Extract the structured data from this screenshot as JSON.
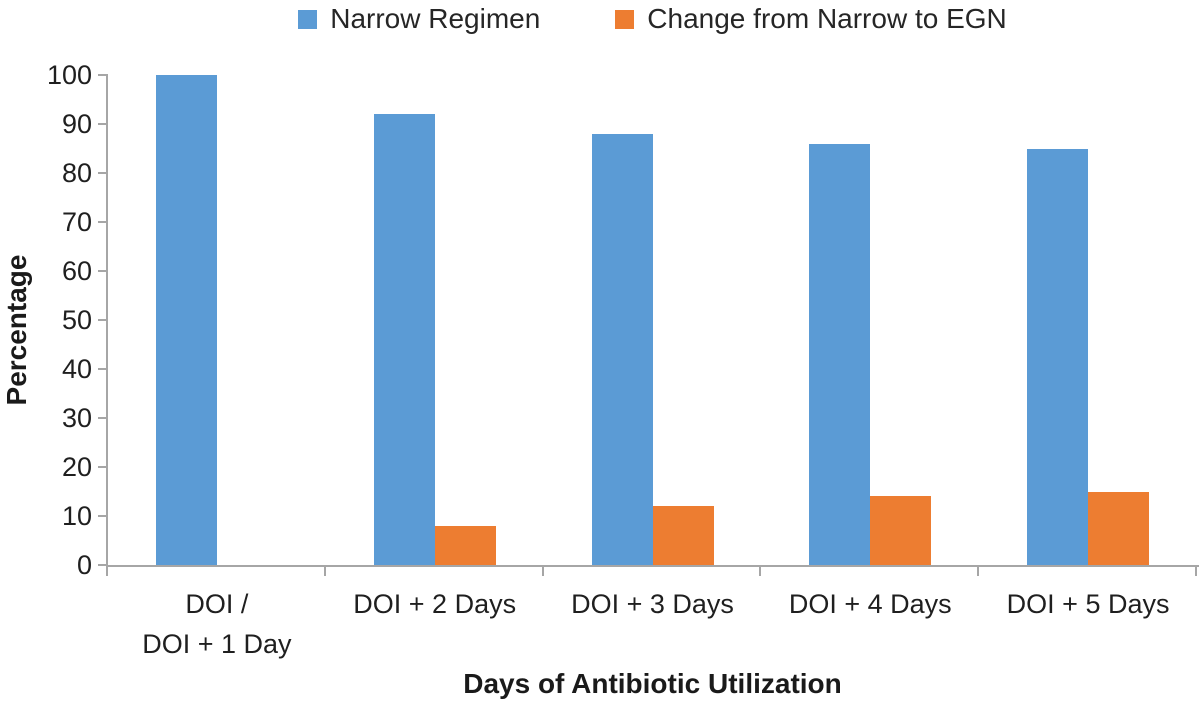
{
  "legend": {
    "items": [
      {
        "label": "Narrow Regimen",
        "color": "#5B9BD5"
      },
      {
        "label": "Change from Narrow to EGN",
        "color": "#ED7D31"
      }
    ]
  },
  "chart_data": {
    "type": "bar",
    "title": "",
    "xlabel": "Days of Antibiotic Utilization",
    "ylabel": "Percentage",
    "ylim": [
      0,
      100
    ],
    "ytick_step": 10,
    "yticks": [
      0,
      10,
      20,
      30,
      40,
      50,
      60,
      70,
      80,
      90,
      100
    ],
    "grid": false,
    "legend_position": "top-center",
    "categories": [
      "DOI / DOI + 1 Day",
      "DOI + 2 Days",
      "DOI + 3 Days",
      "DOI + 4 Days",
      "DOI + 5 Days"
    ],
    "category_label_lines": [
      [
        "DOI /",
        "DOI + 1 Day"
      ],
      [
        "DOI + 2 Days"
      ],
      [
        "DOI + 3 Days"
      ],
      [
        "DOI + 4 Days"
      ],
      [
        "DOI + 5 Days"
      ]
    ],
    "series": [
      {
        "name": "Narrow Regimen",
        "color": "#5B9BD5",
        "values": [
          100,
          92,
          88,
          86,
          85
        ]
      },
      {
        "name": "Change from Narrow to EGN",
        "color": "#ED7D31",
        "values": [
          0,
          8,
          12,
          14,
          15
        ]
      }
    ]
  },
  "colors": {
    "axis": "#A6A6A6",
    "text": "#262626"
  }
}
